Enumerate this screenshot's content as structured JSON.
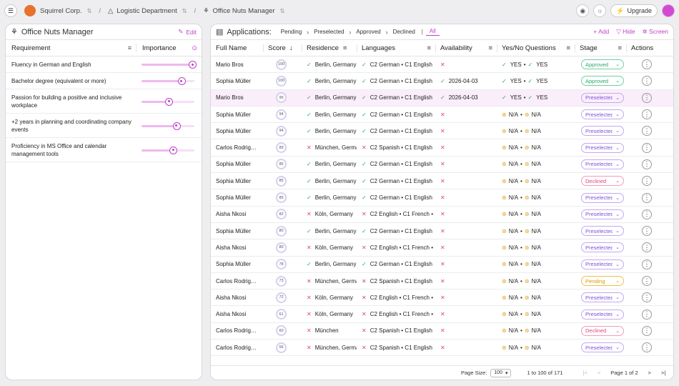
{
  "topbar": {
    "company": "Squirrel Corp.",
    "department": "Logistic Department",
    "project": "Office Nuts Manager",
    "upgrade": "Upgrade"
  },
  "left_panel": {
    "title": "Office Nuts Manager",
    "edit": "Edit",
    "col_requirement": "Requirement",
    "col_importance": "Importance",
    "requirements": [
      {
        "text": "Fluency in German and English",
        "importance": 0.96
      },
      {
        "text": "Bachelor degree (equivalent or more)",
        "importance": 0.75
      },
      {
        "text": "Passion for building a positive and inclusive workplace",
        "importance": 0.52
      },
      {
        "text": "+2 years in planning and coordinating company events",
        "importance": 0.66
      },
      {
        "text": "Proficiency in MS Office and calendar management tools",
        "importance": 0.6
      }
    ]
  },
  "applications": {
    "title": "Applications:",
    "filters": [
      "Pending",
      "Preselected",
      "Approved",
      "Declined",
      "All"
    ],
    "active_filter": "All",
    "add": "Add",
    "hide": "Hide",
    "screen": "Screen",
    "columns": [
      "Full Name",
      "Score",
      "Residence",
      "Languages",
      "Availability",
      "Yes/No Questions",
      "Stage",
      "Actions"
    ],
    "rows": [
      {
        "name": "Mario Bros",
        "score": "100",
        "res": "Berlin, Germany",
        "res_ok": true,
        "lang": "C2 German • C1 English",
        "lang_ok": true,
        "avail": "",
        "q1": "YES",
        "q2": "YES",
        "stage": "Approved"
      },
      {
        "name": "Sophia Müller",
        "score": "100",
        "res": "Berlin, Germany",
        "res_ok": true,
        "lang": "C2 German • C1 English",
        "lang_ok": true,
        "avail": "2026-04-03",
        "q1": "YES",
        "q2": "YES",
        "stage": "Approved"
      },
      {
        "name": "Mario Bros",
        "score": "95",
        "res": "Berlin, Germany",
        "res_ok": true,
        "lang": "C2 German • C1 English",
        "lang_ok": true,
        "avail": "2026-04-03",
        "q1": "YES",
        "q2": "YES",
        "stage": "Preselected"
      },
      {
        "name": "Sophia Müller",
        "score": "94",
        "res": "Berlin, Germany",
        "res_ok": true,
        "lang": "C2 German • C1 English",
        "lang_ok": true,
        "avail": "",
        "q1": "N/A",
        "q2": "N/A",
        "stage": "Preselected"
      },
      {
        "name": "Sophia Müller",
        "score": "94",
        "res": "Berlin, Germany",
        "res_ok": true,
        "lang": "C2 German • C1 English",
        "lang_ok": true,
        "avail": "",
        "q1": "N/A",
        "q2": "N/A",
        "stage": "Preselected"
      },
      {
        "name": "Carlos Rodriguez",
        "score": "89",
        "res": "München, Germany",
        "res_ok": false,
        "lang": "C2 Spanish • C1 English",
        "lang_ok": false,
        "avail": "",
        "q1": "N/A",
        "q2": "N/A",
        "stage": "Preselected"
      },
      {
        "name": "Sophia Müller",
        "score": "85",
        "res": "Berlin, Germany",
        "res_ok": true,
        "lang": "C2 German • C1 English",
        "lang_ok": true,
        "avail": "",
        "q1": "N/A",
        "q2": "N/A",
        "stage": "Preselected"
      },
      {
        "name": "Sophia Müller",
        "score": "85",
        "res": "Berlin, Germany",
        "res_ok": true,
        "lang": "C2 German • C1 English",
        "lang_ok": true,
        "avail": "",
        "q1": "N/A",
        "q2": "N/A",
        "stage": "Declined"
      },
      {
        "name": "Sophia Müller",
        "score": "85",
        "res": "Berlin, Germany",
        "res_ok": true,
        "lang": "C2 German • C1 English",
        "lang_ok": true,
        "avail": "",
        "q1": "N/A",
        "q2": "N/A",
        "stage": "Preselected"
      },
      {
        "name": "Aisha Nkosi",
        "score": "82",
        "res": "Köln, Germany",
        "res_ok": false,
        "lang": "C2 English • C1 French • ",
        "lang_ok": false,
        "avail": "",
        "q1": "N/A",
        "q2": "N/A",
        "stage": "Preselected"
      },
      {
        "name": "Sophia Müller",
        "score": "80",
        "res": "Berlin, Germany",
        "res_ok": true,
        "lang": "C2 German • C1 English",
        "lang_ok": true,
        "avail": "",
        "q1": "N/A",
        "q2": "N/A",
        "stage": "Preselected"
      },
      {
        "name": "Aisha Nkosi",
        "score": "80",
        "res": "Köln, Germany",
        "res_ok": false,
        "lang": "C2 English • C1 French • ",
        "lang_ok": false,
        "avail": "",
        "q1": "N/A",
        "q2": "N/A",
        "stage": "Preselected"
      },
      {
        "name": "Sophia Müller",
        "score": "78",
        "res": "Berlin, Germany",
        "res_ok": true,
        "lang": "C2 German • C1 English",
        "lang_ok": true,
        "avail": "",
        "q1": "N/A",
        "q2": "N/A",
        "stage": "Preselected"
      },
      {
        "name": "Carlos Rodriguez",
        "score": "73",
        "res": "München, Germany",
        "res_ok": false,
        "lang": "C2 Spanish • C1 English",
        "lang_ok": false,
        "avail": "",
        "q1": "N/A",
        "q2": "N/A",
        "stage": "Pending"
      },
      {
        "name": "Aisha Nkosi",
        "score": "72",
        "res": "Köln, Germany",
        "res_ok": false,
        "lang": "C2 English • C1 French • ",
        "lang_ok": false,
        "avail": "",
        "q1": "N/A",
        "q2": "N/A",
        "stage": "Preselected"
      },
      {
        "name": "Aisha Nkosi",
        "score": "61",
        "res": "Köln, Germany",
        "res_ok": false,
        "lang": "C2 English • C1 French • ",
        "lang_ok": false,
        "avail": "",
        "q1": "N/A",
        "q2": "N/A",
        "stage": "Preselected"
      },
      {
        "name": "Carlos Rodriguez",
        "score": "60",
        "res": "München",
        "res_ok": false,
        "lang": "C2 Spanish • C1 English",
        "lang_ok": false,
        "avail": "",
        "q1": "N/A",
        "q2": "N/A",
        "stage": "Declined"
      },
      {
        "name": "Carlos Rodriguez",
        "score": "56",
        "res": "München, Germany",
        "res_ok": false,
        "lang": "C2 Spanish • C1 English",
        "lang_ok": false,
        "avail": "",
        "q1": "N/A",
        "q2": "N/A",
        "stage": "Preselected"
      }
    ],
    "footer": {
      "page_size_label": "Page Size:",
      "page_size": "100",
      "range": "1 to 100 of 171",
      "page": "Page 1 of 2"
    }
  },
  "colors": {
    "accent": "#c03fc8",
    "ok": "#2fa66a",
    "bad": "#e0457a",
    "warn": "#e6a12a",
    "preselected": "#7b52d9"
  }
}
